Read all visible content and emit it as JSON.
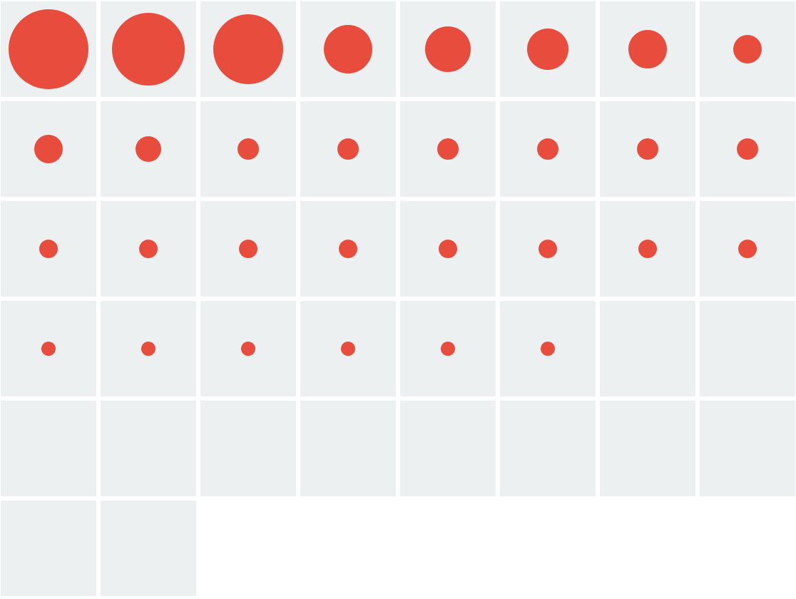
{
  "chart_data": {
    "type": "bubble-grid",
    "columns": 8,
    "colors": {
      "cell": "#ecf0f1",
      "marker": "#e74c3c",
      "background": "#ffffff"
    },
    "max_value": 112,
    "values": [
      112,
      102,
      98,
      68,
      64,
      58,
      54,
      40,
      40,
      36,
      30,
      30,
      30,
      30,
      30,
      30,
      26,
      26,
      26,
      26,
      26,
      26,
      26,
      26,
      20,
      20,
      20,
      20,
      20,
      20,
      0,
      0,
      0,
      0,
      0,
      0,
      0,
      0,
      0,
      0,
      0,
      0
    ]
  }
}
